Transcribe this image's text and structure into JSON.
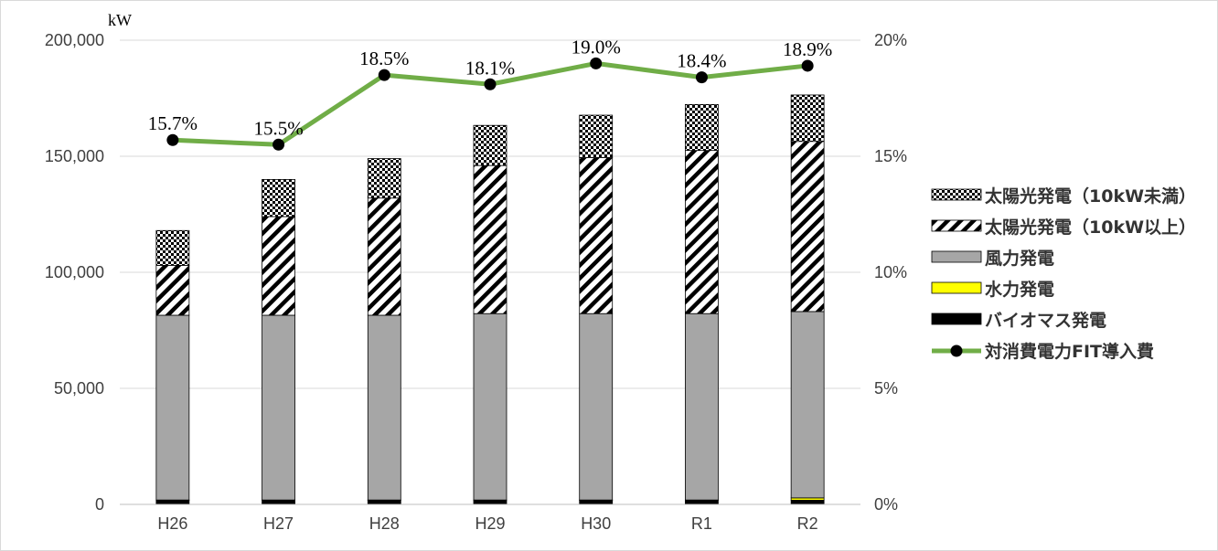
{
  "chart_data": {
    "type": "bar",
    "stacked": true,
    "categories": [
      "H26",
      "H27",
      "H28",
      "H29",
      "H30",
      "R1",
      "R2"
    ],
    "y_unit_label": "kW",
    "ylim": [
      0,
      200000
    ],
    "y_ticks": [
      "0",
      "50,000",
      "100,000",
      "150,000",
      "200,000"
    ],
    "y2lim": [
      0,
      20
    ],
    "y2_ticks": [
      "0%",
      "5%",
      "10%",
      "15%",
      "20%"
    ],
    "grid": true,
    "legend_position": "right",
    "series": [
      {
        "name": "バイオマス発電",
        "kind": "bar",
        "color": "#000000",
        "pattern": "solid",
        "values": [
          1800,
          1800,
          1800,
          1800,
          1800,
          1800,
          1800
        ]
      },
      {
        "name": "水力発電",
        "kind": "bar",
        "color": "#ffff00",
        "pattern": "solid",
        "values": [
          100,
          100,
          100,
          100,
          100,
          100,
          1000
        ]
      },
      {
        "name": "風力発電",
        "kind": "bar",
        "color": "#a6a6a6",
        "pattern": "solid",
        "values": [
          79600,
          79600,
          79600,
          80300,
          80300,
          80300,
          80300
        ]
      },
      {
        "name": "太陽光発電（10kW以上）",
        "kind": "bar",
        "color": "#000000",
        "pattern": "diagonal",
        "values": [
          21500,
          42500,
          50500,
          63800,
          67200,
          70300,
          73300
        ]
      },
      {
        "name": "太陽光発電（10kW未満）",
        "kind": "bar",
        "color": "#000000",
        "pattern": "checker",
        "values": [
          15000,
          16000,
          17000,
          17300,
          18300,
          19800,
          20000
        ]
      },
      {
        "name": "対消費電力FIT導入費",
        "kind": "line",
        "axis": "right",
        "color": "#70ad47",
        "values": [
          15.7,
          15.5,
          18.5,
          18.1,
          19.0,
          18.4,
          18.9
        ],
        "labels": [
          "15.7%",
          "15.5%",
          "18.5%",
          "18.1%",
          "19.0%",
          "18.4%",
          "18.9%"
        ]
      }
    ],
    "legend_order": [
      "太陽光発電（10kW未満）",
      "太陽光発電（10kW以上）",
      "風力発電",
      "水力発電",
      "バイオマス発電",
      "対消費電力FIT導入費"
    ]
  }
}
